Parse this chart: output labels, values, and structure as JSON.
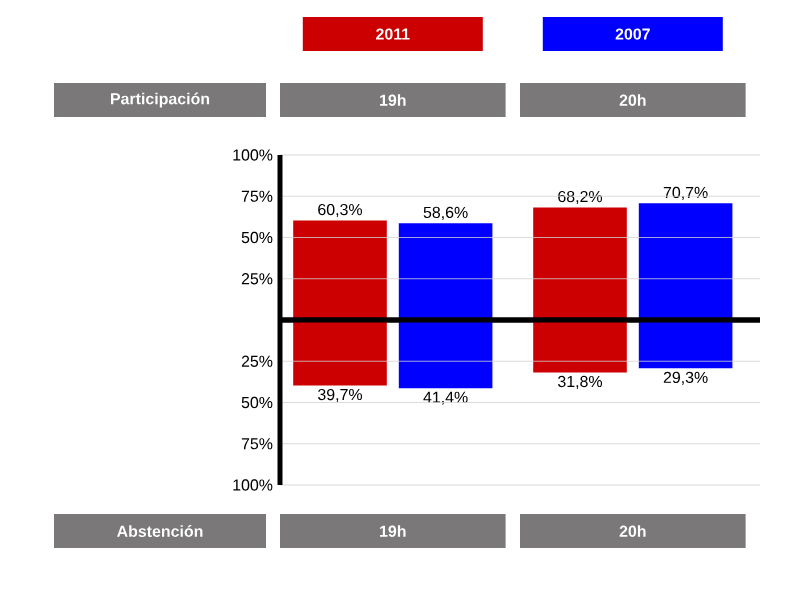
{
  "chart_data": [
    {
      "type": "bar",
      "xlabel": "Participación",
      "categories": [
        "19h",
        "20h"
      ],
      "series": [
        {
          "name": "2011",
          "color": "#cc0000",
          "values": [
            60.3,
            68.2
          ],
          "value_labels": [
            "60,3%",
            "68,2%"
          ]
        },
        {
          "name": "2007",
          "color": "#0000ff",
          "values": [
            58.6,
            70.7
          ],
          "value_labels": [
            "58,6%",
            "70,7%"
          ]
        }
      ],
      "ylim": [
        0,
        100
      ],
      "yticks": [
        {
          "value": 25,
          "label": "25%"
        },
        {
          "value": 50,
          "label": "50%"
        },
        {
          "value": 75,
          "label": "75%"
        },
        {
          "value": 100,
          "label": "100%"
        }
      ],
      "grid": "y",
      "legend": "top"
    },
    {
      "type": "bar",
      "xlabel": "Abstención",
      "categories": [
        "19h",
        "20h"
      ],
      "series": [
        {
          "color": "#cc0000",
          "values": [
            39.7,
            31.8
          ],
          "value_labels": [
            "39,7%",
            "31,8%"
          ]
        },
        {
          "color": "#0000ff",
          "values": [
            41.4,
            29.3
          ],
          "value_labels": [
            "41,4%",
            "29,3%"
          ]
        }
      ],
      "ylim": [
        100,
        0
      ],
      "yticks": [
        {
          "value": 25,
          "label": "25%"
        },
        {
          "value": 50,
          "label": "50%"
        },
        {
          "value": 75,
          "label": "75%"
        },
        {
          "value": 100,
          "label": "100%"
        }
      ],
      "grid": "y"
    }
  ]
}
